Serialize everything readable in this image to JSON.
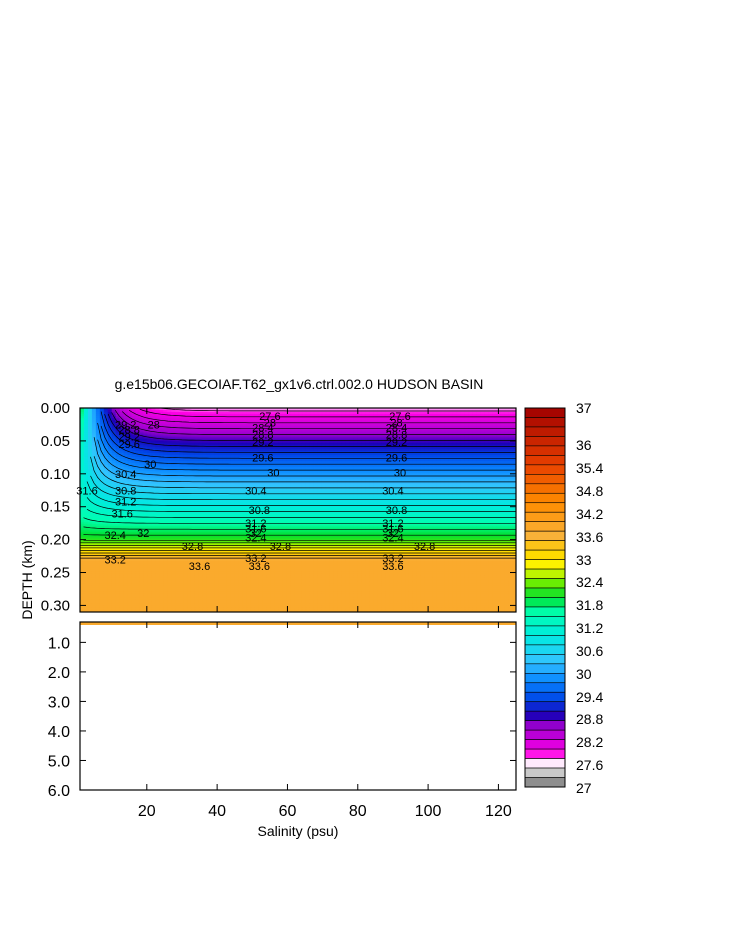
{
  "chart_data": {
    "type": "contour",
    "title": "g.e15b06.GECOIAF.T62_gx1v6.ctrl.002.0 HUDSON BASIN",
    "xlabel": "Salinity (psu)",
    "ylabel": "DEPTH (km)",
    "xlim": [
      1,
      125
    ],
    "x_ticks": [
      20,
      40,
      60,
      80,
      100,
      120
    ],
    "x_tick_labels": [
      "20",
      "40",
      "60",
      "80",
      "100",
      "120"
    ],
    "upper_panel": {
      "ylim": [
        0.0,
        0.31
      ],
      "y_ticks": [
        0.0,
        0.05,
        0.1,
        0.15,
        0.2,
        0.25,
        0.3
      ],
      "y_tick_labels": [
        "0.00",
        "0.05",
        "0.10",
        "0.15",
        "0.20",
        "0.25",
        "0.30"
      ]
    },
    "lower_panel": {
      "ylim": [
        0.31,
        6.0
      ],
      "y_ticks": [
        1.0,
        2.0,
        3.0,
        4.0,
        5.0,
        6.0
      ],
      "y_tick_labels": [
        "1.0",
        "2.0",
        "3.0",
        "4.0",
        "5.0",
        "6.0"
      ]
    },
    "colorbar": {
      "min": 27,
      "max": 37,
      "tick_values": [
        37,
        36,
        35.4,
        34.8,
        34.2,
        33.6,
        33,
        32.4,
        31.8,
        31.2,
        30.6,
        30,
        29.4,
        28.8,
        28.2,
        27.6,
        27
      ],
      "tick_labels": [
        "37",
        "36",
        "35.4",
        "34.8",
        "34.2",
        "33.6",
        "33",
        "32.4",
        "31.8",
        "31.2",
        "30.6",
        "30",
        "29.4",
        "28.8",
        "28.2",
        "27.6",
        "27"
      ]
    },
    "contour_labels": [
      {
        "x": 14,
        "depth": 0.025,
        "text": "29.2"
      },
      {
        "x": 22,
        "depth": 0.025,
        "text": "28"
      },
      {
        "x": 15,
        "depth": 0.033,
        "text": "28.8"
      },
      {
        "x": 15,
        "depth": 0.043,
        "text": "29.2"
      },
      {
        "x": 15,
        "depth": 0.055,
        "text": "29.6"
      },
      {
        "x": 21,
        "depth": 0.085,
        "text": "30"
      },
      {
        "x": 14,
        "depth": 0.1,
        "text": "30.4"
      },
      {
        "x": 14,
        "depth": 0.125,
        "text": "30.8"
      },
      {
        "x": 14,
        "depth": 0.142,
        "text": "31.2"
      },
      {
        "x": 13,
        "depth": 0.16,
        "text": "31.6"
      },
      {
        "x": 19,
        "depth": 0.19,
        "text": "32"
      },
      {
        "x": 11,
        "depth": 0.193,
        "text": "32.4"
      },
      {
        "x": 33,
        "depth": 0.21,
        "text": "32.8"
      },
      {
        "x": 11,
        "depth": 0.23,
        "text": "33.2"
      },
      {
        "x": 35,
        "depth": 0.24,
        "text": "33.6"
      },
      {
        "x": 55,
        "depth": 0.012,
        "text": "27.6"
      },
      {
        "x": 55,
        "depth": 0.022,
        "text": "28"
      },
      {
        "x": 53,
        "depth": 0.03,
        "text": "28.4"
      },
      {
        "x": 53,
        "depth": 0.04,
        "text": "28.8"
      },
      {
        "x": 53,
        "depth": 0.052,
        "text": "29.2"
      },
      {
        "x": 53,
        "depth": 0.075,
        "text": "29.6"
      },
      {
        "x": 56,
        "depth": 0.098,
        "text": "30"
      },
      {
        "x": 51,
        "depth": 0.125,
        "text": "30.4"
      },
      {
        "x": 52,
        "depth": 0.155,
        "text": "30.8"
      },
      {
        "x": 51,
        "depth": 0.175,
        "text": "31.2"
      },
      {
        "x": 51,
        "depth": 0.183,
        "text": "31.6"
      },
      {
        "x": 51,
        "depth": 0.19,
        "text": "32"
      },
      {
        "x": 51,
        "depth": 0.197,
        "text": "32.4"
      },
      {
        "x": 58,
        "depth": 0.21,
        "text": "32.8"
      },
      {
        "x": 51,
        "depth": 0.228,
        "text": "33.2"
      },
      {
        "x": 52,
        "depth": 0.24,
        "text": "33.6"
      },
      {
        "x": 92,
        "depth": 0.012,
        "text": "27.6"
      },
      {
        "x": 91,
        "depth": 0.022,
        "text": "28"
      },
      {
        "x": 91,
        "depth": 0.03,
        "text": "28.4"
      },
      {
        "x": 91,
        "depth": 0.04,
        "text": "28.8"
      },
      {
        "x": 91,
        "depth": 0.052,
        "text": "29.2"
      },
      {
        "x": 91,
        "depth": 0.075,
        "text": "29.6"
      },
      {
        "x": 92,
        "depth": 0.098,
        "text": "30"
      },
      {
        "x": 90,
        "depth": 0.125,
        "text": "30.4"
      },
      {
        "x": 91,
        "depth": 0.155,
        "text": "30.8"
      },
      {
        "x": 90,
        "depth": 0.175,
        "text": "31.2"
      },
      {
        "x": 90,
        "depth": 0.183,
        "text": "31.6"
      },
      {
        "x": 90,
        "depth": 0.19,
        "text": "32"
      },
      {
        "x": 90,
        "depth": 0.197,
        "text": "32.4"
      },
      {
        "x": 99,
        "depth": 0.21,
        "text": "32.8"
      },
      {
        "x": 90,
        "depth": 0.228,
        "text": "33.2"
      },
      {
        "x": 90,
        "depth": 0.24,
        "text": "33.6"
      },
      {
        "x": 3,
        "depth": 0.125,
        "text": "31.6"
      }
    ],
    "grid": false,
    "legend": "colorbar-right"
  }
}
